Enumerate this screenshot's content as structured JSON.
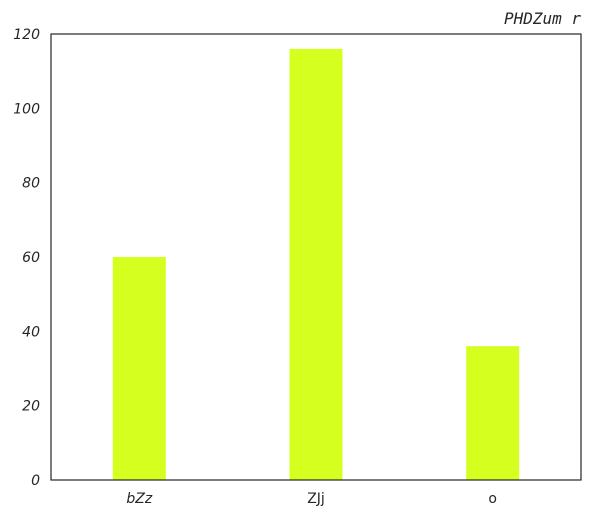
{
  "chart_data": {
    "type": "bar",
    "title": "PHDZum r",
    "categories": [
      "bZz",
      "ZJj",
      "o"
    ],
    "category_italic": [
      true,
      false,
      false
    ],
    "values": [
      60,
      116,
      36
    ],
    "ylim": [
      0,
      120
    ],
    "yticks": [
      0,
      20,
      40,
      60,
      80,
      100,
      120
    ],
    "xlabel": "",
    "ylabel": "",
    "bar_color": "#d4ff1f",
    "grid": false,
    "legend": "none"
  }
}
